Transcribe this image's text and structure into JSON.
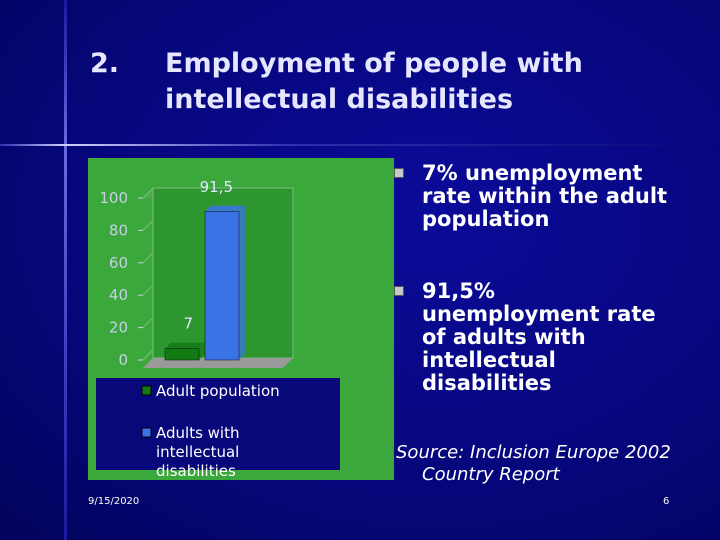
{
  "slide": {
    "number": "2.",
    "title_lines": [
      "Employment of people with",
      "intellectual disabilities"
    ],
    "bullets": [
      "7% unemployment rate within the adult population",
      "91,5% unemployment rate of adults with intellectual disabilities"
    ],
    "source_lines": [
      "Source: Inclusion Europe 2002",
      "Country Report"
    ],
    "date": "9/15/2020",
    "page": "6"
  },
  "chart_data": {
    "type": "bar",
    "series": [
      {
        "name": "Adult population",
        "color": "#127a12",
        "values": [
          7
        ],
        "value_labels": [
          "7"
        ]
      },
      {
        "name": "Adults with intellectual disabilities",
        "color": "#3a72e8",
        "values": [
          91.5
        ],
        "value_labels": [
          "91,5"
        ]
      }
    ],
    "ylim": [
      0,
      100
    ],
    "yticks": [
      0,
      20,
      40,
      60,
      80,
      100
    ],
    "grid": true,
    "legend": "bottom"
  }
}
